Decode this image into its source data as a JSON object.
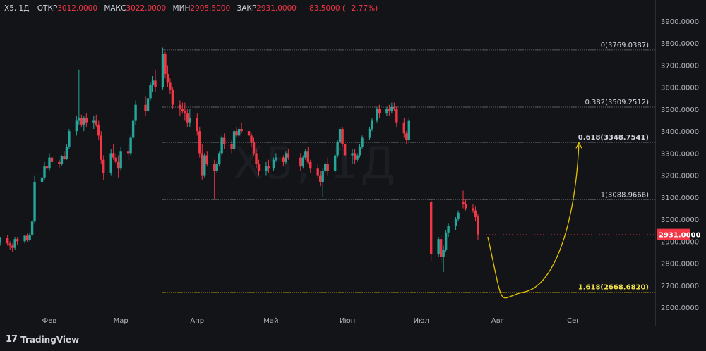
{
  "header": {
    "symbol": "X5, 1Д",
    "open_label": "ОТКР",
    "open_value": "3012.0000",
    "high_label": "МАКС",
    "high_value": "3022.0000",
    "low_label": "МИН",
    "low_value": "2905.5000",
    "close_label": "ЗАКР",
    "close_value": "2931.0000",
    "change": "−83.5000 (−2.77%)"
  },
  "watermark": "X5, 1Д",
  "logo": {
    "text": "TradingView",
    "icon": "tradingview-logo-icon"
  },
  "colors": {
    "up": "#26a69a",
    "down": "#f23645",
    "background": "#131418",
    "fib": "#d1d4dc",
    "fib_main": "#e5c100",
    "projection": "#e5c100",
    "price_badge": "#f23645"
  },
  "chart_data": {
    "type": "candlestick",
    "x_axis_labels": [
      {
        "date": "2024-02-01",
        "label": "Фев"
      },
      {
        "date": "2024-03-01",
        "label": "Мар"
      },
      {
        "date": "2024-04-01",
        "label": "Апр"
      },
      {
        "date": "2024-05-01",
        "label": "Май"
      },
      {
        "date": "2024-06-01",
        "label": "Июн"
      },
      {
        "date": "2024-07-01",
        "label": "Июл"
      },
      {
        "date": "2024-08-01",
        "label": "Авг"
      },
      {
        "date": "2024-09-01",
        "label": "Сен"
      }
    ],
    "y_ticks": [
      "3900.0000",
      "3800.0000",
      "3700.0000",
      "3600.0000",
      "3500.0000",
      "3400.0000",
      "3300.0000",
      "3200.0000",
      "3100.0000",
      "3000.0000",
      "2900.0000",
      "2800.0000",
      "2700.0000",
      "2600.0000"
    ],
    "ylim": [
      2600,
      3900
    ],
    "last_price": "2931.0000",
    "fib_levels": [
      {
        "ratio": 0,
        "price": 3769.0387,
        "label": "0(3769.0387)"
      },
      {
        "ratio": 0.382,
        "price": 3509.2512,
        "label": "0.382(3509.2512)"
      },
      {
        "ratio": 0.618,
        "price": 3348.7541,
        "label": "0.618(3348.7541)"
      },
      {
        "ratio": 1,
        "price": 3088.9666,
        "label": "1(3088.9666)"
      },
      {
        "ratio": 1.618,
        "price": 2668.682,
        "label": "1.618(2668.6820)"
      }
    ],
    "projection": {
      "from": {
        "date": "2024-07-28",
        "price": 2920
      },
      "bottom": {
        "date": "2024-08-12",
        "price": 2670
      },
      "to": {
        "date": "2024-09-03",
        "price": 3348
      }
    },
    "candles": [
      [
        "2024-01-10",
        2990,
        2998,
        2940,
        2950
      ],
      [
        "2024-01-11",
        2950,
        2955,
        2880,
        2895
      ],
      [
        "2024-01-12",
        2895,
        2920,
        2880,
        2915
      ],
      [
        "2024-01-15",
        2915,
        2930,
        2880,
        2890
      ],
      [
        "2024-01-16",
        2890,
        2900,
        2860,
        2880
      ],
      [
        "2024-01-17",
        2880,
        2890,
        2850,
        2870
      ],
      [
        "2024-01-18",
        2870,
        2920,
        2860,
        2910
      ],
      [
        "2024-01-19",
        2910,
        2920,
        2885,
        2900
      ],
      [
        "2024-01-22",
        2900,
        2930,
        2890,
        2925
      ],
      [
        "2024-01-23",
        2925,
        2935,
        2895,
        2905
      ],
      [
        "2024-01-24",
        2905,
        2940,
        2900,
        2930
      ],
      [
        "2024-01-25",
        2930,
        3000,
        2920,
        2990
      ],
      [
        "2024-01-26",
        2990,
        3200,
        2980,
        3170
      ],
      [
        "2024-01-29",
        3170,
        3220,
        3150,
        3190
      ],
      [
        "2024-01-30",
        3190,
        3260,
        3180,
        3240
      ],
      [
        "2024-01-31",
        3240,
        3270,
        3210,
        3230
      ],
      [
        "2024-02-01",
        3230,
        3300,
        3220,
        3280
      ],
      [
        "2024-02-02",
        3280,
        3290,
        3240,
        3260
      ],
      [
        "2024-02-05",
        3260,
        3270,
        3235,
        3250
      ],
      [
        "2024-02-06",
        3250,
        3290,
        3245,
        3285
      ],
      [
        "2024-02-07",
        3285,
        3310,
        3270,
        3275
      ],
      [
        "2024-02-08",
        3275,
        3340,
        3270,
        3330
      ],
      [
        "2024-02-09",
        3330,
        3410,
        3320,
        3400
      ],
      [
        "2024-02-12",
        3400,
        3470,
        3380,
        3450
      ],
      [
        "2024-02-13",
        3450,
        3680,
        3430,
        3460
      ],
      [
        "2024-02-14",
        3460,
        3475,
        3420,
        3430
      ],
      [
        "2024-02-15",
        3430,
        3470,
        3400,
        3460
      ],
      [
        "2024-02-16",
        3460,
        3480,
        3420,
        3440
      ],
      [
        "2024-02-19",
        3440,
        3470,
        3410,
        3450
      ],
      [
        "2024-02-20",
        3450,
        3475,
        3420,
        3430
      ],
      [
        "2024-02-21",
        3430,
        3450,
        3360,
        3380
      ],
      [
        "2024-02-22",
        3380,
        3400,
        3250,
        3270
      ],
      [
        "2024-02-23",
        3270,
        3290,
        3180,
        3210
      ],
      [
        "2024-02-26",
        3210,
        3320,
        3200,
        3300
      ],
      [
        "2024-02-27",
        3300,
        3340,
        3270,
        3280
      ],
      [
        "2024-02-28",
        3280,
        3300,
        3250,
        3260
      ],
      [
        "2024-02-29",
        3260,
        3290,
        3190,
        3230
      ],
      [
        "2024-03-01",
        3230,
        3330,
        3220,
        3310
      ],
      [
        "2024-03-04",
        3310,
        3340,
        3270,
        3300
      ],
      [
        "2024-03-05",
        3300,
        3380,
        3290,
        3370
      ],
      [
        "2024-03-06",
        3370,
        3460,
        3360,
        3450
      ],
      [
        "2024-03-07",
        3450,
        3540,
        3430,
        3520
      ],
      [
        "2024-03-11",
        3520,
        3560,
        3470,
        3490
      ],
      [
        "2024-03-12",
        3490,
        3560,
        3480,
        3550
      ],
      [
        "2024-03-13",
        3550,
        3620,
        3540,
        3610
      ],
      [
        "2024-03-14",
        3610,
        3650,
        3580,
        3630
      ],
      [
        "2024-03-15",
        3630,
        3680,
        3580,
        3600
      ],
      [
        "2024-03-18",
        3600,
        3780,
        3590,
        3750
      ],
      [
        "2024-03-19",
        3750,
        3760,
        3640,
        3660
      ],
      [
        "2024-03-20",
        3660,
        3700,
        3600,
        3620
      ],
      [
        "2024-03-21",
        3620,
        3640,
        3570,
        3590
      ],
      [
        "2024-03-22",
        3590,
        3600,
        3500,
        3520
      ],
      [
        "2024-03-25",
        3520,
        3540,
        3470,
        3500
      ],
      [
        "2024-03-26",
        3500,
        3530,
        3480,
        3490
      ],
      [
        "2024-03-27",
        3490,
        3530,
        3450,
        3480
      ],
      [
        "2024-03-28",
        3480,
        3500,
        3420,
        3440
      ],
      [
        "2024-03-29",
        3440,
        3500,
        3420,
        3460
      ],
      [
        "2024-04-01",
        3460,
        3480,
        3380,
        3400
      ],
      [
        "2024-04-02",
        3400,
        3420,
        3280,
        3300
      ],
      [
        "2024-04-03",
        3300,
        3340,
        3180,
        3200
      ],
      [
        "2024-04-04",
        3200,
        3300,
        3190,
        3290
      ],
      [
        "2024-04-05",
        3290,
        3310,
        3240,
        3250
      ],
      [
        "2024-04-08",
        3250,
        3270,
        3090,
        3220
      ],
      [
        "2024-04-09",
        3220,
        3260,
        3210,
        3250
      ],
      [
        "2024-04-10",
        3250,
        3310,
        3240,
        3300
      ],
      [
        "2024-04-11",
        3300,
        3380,
        3290,
        3370
      ],
      [
        "2024-04-12",
        3370,
        3390,
        3320,
        3340
      ],
      [
        "2024-04-15",
        3340,
        3360,
        3300,
        3320
      ],
      [
        "2024-04-16",
        3320,
        3410,
        3310,
        3400
      ],
      [
        "2024-04-17",
        3400,
        3420,
        3370,
        3380
      ],
      [
        "2024-04-18",
        3380,
        3420,
        3370,
        3410
      ],
      [
        "2024-04-19",
        3410,
        3440,
        3390,
        3400
      ],
      [
        "2024-04-22",
        3400,
        3420,
        3360,
        3380
      ],
      [
        "2024-04-23",
        3380,
        3390,
        3330,
        3350
      ],
      [
        "2024-04-24",
        3350,
        3370,
        3290,
        3300
      ],
      [
        "2024-04-25",
        3300,
        3320,
        3230,
        3250
      ],
      [
        "2024-04-26",
        3250,
        3270,
        3200,
        3220
      ],
      [
        "2024-04-29",
        3220,
        3260,
        3200,
        3240
      ],
      [
        "2024-04-30",
        3240,
        3270,
        3210,
        3230
      ],
      [
        "2024-05-02",
        3230,
        3280,
        3220,
        3270
      ],
      [
        "2024-05-03",
        3270,
        3300,
        3260,
        3280
      ],
      [
        "2024-05-06",
        3280,
        3290,
        3240,
        3260
      ],
      [
        "2024-05-07",
        3260,
        3310,
        3250,
        3300
      ],
      [
        "2024-05-08",
        3300,
        3320,
        3270,
        3280
      ],
      [
        "2024-05-13",
        3280,
        3300,
        3220,
        3240
      ],
      [
        "2024-05-14",
        3240,
        3290,
        3230,
        3280
      ],
      [
        "2024-05-15",
        3280,
        3320,
        3270,
        3310
      ],
      [
        "2024-05-16",
        3310,
        3330,
        3250,
        3260
      ],
      [
        "2024-05-17",
        3260,
        3270,
        3210,
        3230
      ],
      [
        "2024-05-20",
        3230,
        3250,
        3190,
        3200
      ],
      [
        "2024-05-21",
        3200,
        3220,
        3150,
        3170
      ],
      [
        "2024-05-22",
        3170,
        3230,
        3100,
        3220
      ],
      [
        "2024-05-23",
        3220,
        3260,
        3210,
        3250
      ],
      [
        "2024-05-24",
        3250,
        3280,
        3200,
        3220
      ],
      [
        "2024-05-27",
        3220,
        3300,
        3210,
        3290
      ],
      [
        "2024-05-28",
        3290,
        3360,
        3280,
        3350
      ],
      [
        "2024-05-29",
        3350,
        3420,
        3340,
        3410
      ],
      [
        "2024-05-30",
        3410,
        3420,
        3330,
        3340
      ],
      [
        "2024-05-31",
        3340,
        3360,
        3270,
        3290
      ],
      [
        "2024-06-03",
        3290,
        3320,
        3250,
        3300
      ],
      [
        "2024-06-04",
        3300,
        3320,
        3250,
        3270
      ],
      [
        "2024-06-05",
        3270,
        3300,
        3260,
        3290
      ],
      [
        "2024-06-06",
        3290,
        3340,
        3280,
        3330
      ],
      [
        "2024-06-07",
        3330,
        3380,
        3320,
        3370
      ],
      [
        "2024-06-10",
        3370,
        3420,
        3360,
        3410
      ],
      [
        "2024-06-11",
        3410,
        3460,
        3400,
        3450
      ],
      [
        "2024-06-13",
        3450,
        3510,
        3440,
        3500
      ],
      [
        "2024-06-14",
        3500,
        3520,
        3460,
        3480
      ],
      [
        "2024-06-17",
        3480,
        3510,
        3470,
        3500
      ],
      [
        "2024-06-18",
        3500,
        3520,
        3470,
        3490
      ],
      [
        "2024-06-19",
        3490,
        3530,
        3480,
        3510
      ],
      [
        "2024-06-20",
        3510,
        3530,
        3490,
        3500
      ],
      [
        "2024-06-21",
        3500,
        3510,
        3420,
        3440
      ],
      [
        "2024-06-24",
        3440,
        3460,
        3370,
        3390
      ],
      [
        "2024-06-25",
        3390,
        3400,
        3340,
        3360
      ],
      [
        "2024-06-26",
        3360,
        3460,
        3350,
        3450
      ],
      [
        "2024-07-05",
        3080,
        3090,
        2810,
        2840
      ],
      [
        "2024-07-08",
        2840,
        2920,
        2830,
        2910
      ],
      [
        "2024-07-09",
        2910,
        2930,
        2800,
        2830
      ],
      [
        "2024-07-10",
        2830,
        2880,
        2760,
        2860
      ],
      [
        "2024-07-11",
        2860,
        2950,
        2850,
        2940
      ],
      [
        "2024-07-12",
        2940,
        2980,
        2920,
        2970
      ],
      [
        "2024-07-15",
        2970,
        3010,
        2950,
        3000
      ],
      [
        "2024-07-16",
        3000,
        3040,
        2990,
        3030
      ],
      [
        "2024-07-18",
        3080,
        3130,
        3050,
        3070
      ],
      [
        "2024-07-19",
        3070,
        3090,
        3040,
        3050
      ],
      [
        "2024-07-22",
        3050,
        3070,
        3030,
        3040
      ],
      [
        "2024-07-23",
        3040,
        3060,
        2990,
        3010
      ],
      [
        "2024-07-24",
        3012,
        3022,
        2905.5,
        2931
      ]
    ]
  }
}
